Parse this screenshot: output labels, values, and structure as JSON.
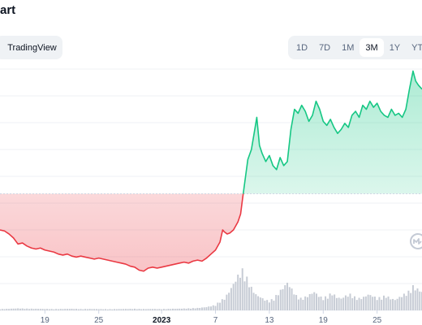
{
  "title": "art",
  "tradingview_label": "TradingView",
  "ranges": [
    "1D",
    "7D",
    "1M",
    "3M",
    "1Y",
    "YTD"
  ],
  "active_range": "3M",
  "colors": {
    "up": "#16c784",
    "down": "#ea3943",
    "volume": "#c7ccd5",
    "grid": "#eff2f5",
    "baseline": "#cfd6e4",
    "watermark": "#c4cad5"
  },
  "watermark_icon": "coinmarketcap-logo-icon",
  "chart_data": {
    "type": "area",
    "title": "",
    "xlabel": "",
    "ylabel": "",
    "x_tick_labels": [
      "19",
      "25",
      "2023",
      "7",
      "13",
      "19",
      "25"
    ],
    "x_tick_days": [
      -13,
      -7,
      0,
      6,
      12,
      18,
      24
    ],
    "x_range": [
      -18,
      29
    ],
    "y_range": [
      0,
      120
    ],
    "baseline_value": 58,
    "grid": true,
    "price_series": [
      [
        -18,
        40.0
      ],
      [
        -17.5,
        39.5
      ],
      [
        -17,
        38.0
      ],
      [
        -16.5,
        36.0
      ],
      [
        -16,
        33.0
      ],
      [
        -15.5,
        33.5
      ],
      [
        -15,
        32.0
      ],
      [
        -14.5,
        31.0
      ],
      [
        -14,
        30.5
      ],
      [
        -13.5,
        31.0
      ],
      [
        -13,
        30.0
      ],
      [
        -12.5,
        29.5
      ],
      [
        -12,
        29.0
      ],
      [
        -11.5,
        28.0
      ],
      [
        -11,
        27.5
      ],
      [
        -10.5,
        28.0
      ],
      [
        -10,
        27.0
      ],
      [
        -9.5,
        26.5
      ],
      [
        -9,
        27.0
      ],
      [
        -8.5,
        26.5
      ],
      [
        -8,
        26.0
      ],
      [
        -7.5,
        25.5
      ],
      [
        -7,
        26.0
      ],
      [
        -6.5,
        25.5
      ],
      [
        -6,
        25.0
      ],
      [
        -5.5,
        24.5
      ],
      [
        -5,
        24.0
      ],
      [
        -4.5,
        23.5
      ],
      [
        -4,
        23.0
      ],
      [
        -3.5,
        22.0
      ],
      [
        -3,
        21.5
      ],
      [
        -2.5,
        20.0
      ],
      [
        -2,
        19.5
      ],
      [
        -1.5,
        21.0
      ],
      [
        -1,
        21.5
      ],
      [
        -0.5,
        21.0
      ],
      [
        0,
        21.5
      ],
      [
        0.5,
        22.0
      ],
      [
        1,
        22.5
      ],
      [
        1.5,
        23.0
      ],
      [
        2,
        23.5
      ],
      [
        2.5,
        24.0
      ],
      [
        3,
        23.5
      ],
      [
        3.5,
        24.5
      ],
      [
        4,
        25.0
      ],
      [
        4.5,
        24.5
      ],
      [
        5,
        26.0
      ],
      [
        5.5,
        28.0
      ],
      [
        6,
        30.0
      ],
      [
        6.5,
        34.0
      ],
      [
        6.8,
        40.0
      ],
      [
        7,
        39.0
      ],
      [
        7.3,
        38.0
      ],
      [
        7.6,
        38.5
      ],
      [
        8,
        40.0
      ],
      [
        8.5,
        44.0
      ],
      [
        8.8,
        48.0
      ],
      [
        9,
        55.0
      ],
      [
        9.3,
        65.0
      ],
      [
        9.6,
        75.0
      ],
      [
        10,
        80.0
      ],
      [
        10.3,
        88.0
      ],
      [
        10.6,
        96.0
      ],
      [
        10.9,
        82.0
      ],
      [
        11.2,
        78.0
      ],
      [
        11.6,
        74.0
      ],
      [
        12,
        77.0
      ],
      [
        12.4,
        72.0
      ],
      [
        12.8,
        70.0
      ],
      [
        13.2,
        76.0
      ],
      [
        13.6,
        72.0
      ],
      [
        14,
        74.0
      ],
      [
        14.4,
        90.0
      ],
      [
        14.8,
        100.0
      ],
      [
        15.2,
        98.0
      ],
      [
        15.6,
        102.0
      ],
      [
        16,
        99.0
      ],
      [
        16.4,
        94.0
      ],
      [
        16.8,
        97.0
      ],
      [
        17.2,
        104.0
      ],
      [
        17.6,
        100.0
      ],
      [
        18,
        94.0
      ],
      [
        18.4,
        92.0
      ],
      [
        18.8,
        95.0
      ],
      [
        19.2,
        91.0
      ],
      [
        19.6,
        88.0
      ],
      [
        20,
        90.0
      ],
      [
        20.4,
        93.0
      ],
      [
        20.8,
        91.0
      ],
      [
        21.2,
        97.0
      ],
      [
        21.6,
        99.0
      ],
      [
        22,
        96.0
      ],
      [
        22.4,
        102.0
      ],
      [
        22.8,
        100.0
      ],
      [
        23.2,
        104.0
      ],
      [
        23.6,
        101.0
      ],
      [
        24,
        103.0
      ],
      [
        24.4,
        99.0
      ],
      [
        24.8,
        97.0
      ],
      [
        25.2,
        96.0
      ],
      [
        25.6,
        100.0
      ],
      [
        26,
        97.0
      ],
      [
        26.4,
        98.0
      ],
      [
        26.8,
        96.0
      ],
      [
        27.2,
        100.0
      ],
      [
        27.6,
        110.0
      ],
      [
        28,
        119.0
      ],
      [
        28.3,
        114.0
      ],
      [
        28.6,
        112.0
      ],
      [
        29,
        110.0
      ]
    ],
    "volume_series": [
      [
        -18,
        1.0
      ],
      [
        -17,
        1.2
      ],
      [
        -16,
        1.5
      ],
      [
        -15,
        1.3
      ],
      [
        -14,
        1.2
      ],
      [
        -13,
        1.1
      ],
      [
        -12,
        1.0
      ],
      [
        -11,
        1.1
      ],
      [
        -10,
        1.2
      ],
      [
        -9,
        1.0
      ],
      [
        -8,
        1.1
      ],
      [
        -7,
        1.0
      ],
      [
        -6,
        0.9
      ],
      [
        -5,
        1.0
      ],
      [
        -4,
        1.1
      ],
      [
        -3,
        1.2
      ],
      [
        -2,
        1.0
      ],
      [
        -1,
        1.1
      ],
      [
        0,
        1.0
      ],
      [
        1,
        1.2
      ],
      [
        2,
        1.3
      ],
      [
        3,
        1.5
      ],
      [
        4,
        1.8
      ],
      [
        5,
        2.5
      ],
      [
        6,
        4.0
      ],
      [
        6.5,
        7.0
      ],
      [
        7,
        9.0
      ],
      [
        7.5,
        14.0
      ],
      [
        8,
        20.0
      ],
      [
        8.5,
        26.0
      ],
      [
        9,
        30.0
      ],
      [
        9.5,
        24.0
      ],
      [
        10,
        17.0
      ],
      [
        10.5,
        12.0
      ],
      [
        11,
        10.0
      ],
      [
        11.5,
        8.0
      ],
      [
        12,
        7.0
      ],
      [
        12.5,
        9.0
      ],
      [
        13,
        13.0
      ],
      [
        13.5,
        17.0
      ],
      [
        14,
        21.0
      ],
      [
        14.5,
        16.0
      ],
      [
        15,
        11.0
      ],
      [
        15.5,
        9.0
      ],
      [
        16,
        10.0
      ],
      [
        16.5,
        12.0
      ],
      [
        17,
        14.0
      ],
      [
        17.5,
        11.0
      ],
      [
        18,
        9.0
      ],
      [
        18.5,
        11.0
      ],
      [
        19,
        13.0
      ],
      [
        19.5,
        10.0
      ],
      [
        20,
        9.0
      ],
      [
        20.5,
        11.0
      ],
      [
        21,
        12.0
      ],
      [
        21.5,
        10.0
      ],
      [
        22,
        9.0
      ],
      [
        22.5,
        10.0
      ],
      [
        23,
        12.0
      ],
      [
        23.5,
        11.0
      ],
      [
        24,
        9.0
      ],
      [
        24.5,
        10.0
      ],
      [
        25,
        11.0
      ],
      [
        25.5,
        9.0
      ],
      [
        26,
        8.0
      ],
      [
        26.5,
        10.0
      ],
      [
        27,
        12.0
      ],
      [
        27.5,
        14.0
      ],
      [
        28,
        18.0
      ],
      [
        28.5,
        16.0
      ],
      [
        29,
        14.0
      ]
    ],
    "volume_range": [
      0,
      30
    ]
  }
}
